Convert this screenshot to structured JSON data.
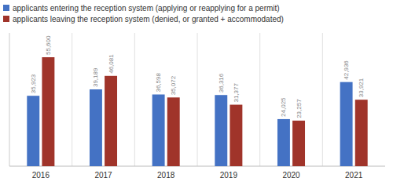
{
  "chart_data": {
    "type": "bar",
    "categories": [
      "2016",
      "2017",
      "2018",
      "2019",
      "2020",
      "2021"
    ],
    "series": [
      {
        "name": "applicants entering the reception system (applying or reapplying for a permit)",
        "color": "#4472C4",
        "values": [
          35923,
          39189,
          36598,
          36316,
          24025,
          42936
        ],
        "value_labels": [
          "35,923",
          "39,189",
          "36,598",
          "36,316",
          "24,025",
          "42,936"
        ]
      },
      {
        "name": "applicants leaving the reception system (denied, or granted + accommodated)",
        "color": "#A0342A",
        "values": [
          55600,
          46081,
          35072,
          31377,
          23257,
          33921
        ],
        "value_labels": [
          "55,600",
          "46,081",
          "35,072",
          "31,377",
          "23,257",
          "33,921"
        ]
      }
    ],
    "ylim": [
      0,
      68000
    ],
    "tick_labels": "x",
    "data_labels": true,
    "legend": "upper left"
  }
}
